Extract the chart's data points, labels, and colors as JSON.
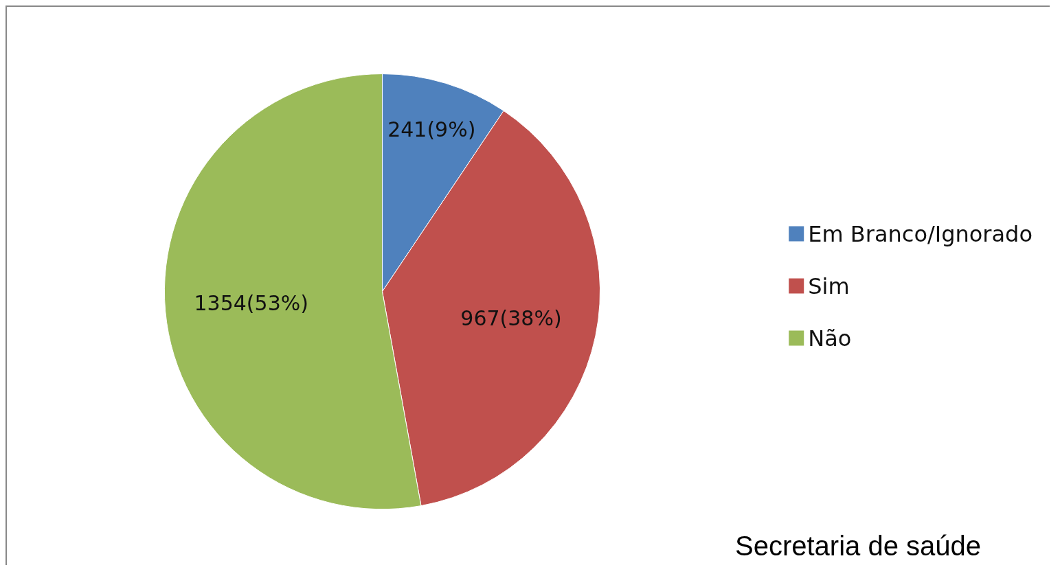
{
  "chart_data": {
    "type": "pie",
    "categories": [
      "Em Branco/Ignorado",
      "Sim",
      "Não"
    ],
    "values": [
      241,
      967,
      1354
    ],
    "colors": [
      "#4f81bd",
      "#c0504d",
      "#9bbb59"
    ],
    "value_labels": [
      "241(9%)",
      "967(38%)",
      "1354(53%)"
    ],
    "legend": "right",
    "annotations": [
      "Secretaria de saúde"
    ]
  }
}
